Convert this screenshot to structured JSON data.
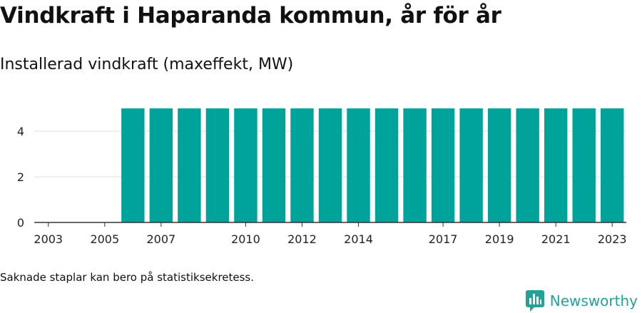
{
  "title": "Vindkraft i Haparanda kommun, år för år",
  "subtitle": "Installerad vindkraft (maxeffekt, MW)",
  "note": "Saknade staplar kan bero på statistiksekretess.",
  "brand": {
    "name": "Newsworthy",
    "icon": "newsworthy-logo-icon",
    "color": "#24a298"
  },
  "chart_data": {
    "type": "bar",
    "title": "Vindkraft i Haparanda kommun, år för år",
    "subtitle": "Installerad vindkraft (maxeffekt, MW)",
    "xlabel": "",
    "ylabel": "",
    "categories": [
      "2003",
      "2004",
      "2005",
      "2006",
      "2007",
      "2008",
      "2009",
      "2010",
      "2011",
      "2012",
      "2013",
      "2014",
      "2015",
      "2016",
      "2017",
      "2018",
      "2019",
      "2020",
      "2021",
      "2022",
      "2023"
    ],
    "values": [
      0,
      0,
      0,
      5,
      5,
      5,
      5,
      5,
      5,
      5,
      5,
      5,
      5,
      5,
      5,
      5,
      5,
      5,
      5,
      5,
      5
    ],
    "x_tick_labels": [
      "2003",
      "2005",
      "2007",
      "2010",
      "2012",
      "2014",
      "2017",
      "2019",
      "2021",
      "2023"
    ],
    "y_ticks": [
      0,
      2,
      4
    ],
    "ylim": [
      0,
      5
    ],
    "grid": true,
    "bar_color": "#00a39a",
    "grid_color": "#dddddd"
  }
}
